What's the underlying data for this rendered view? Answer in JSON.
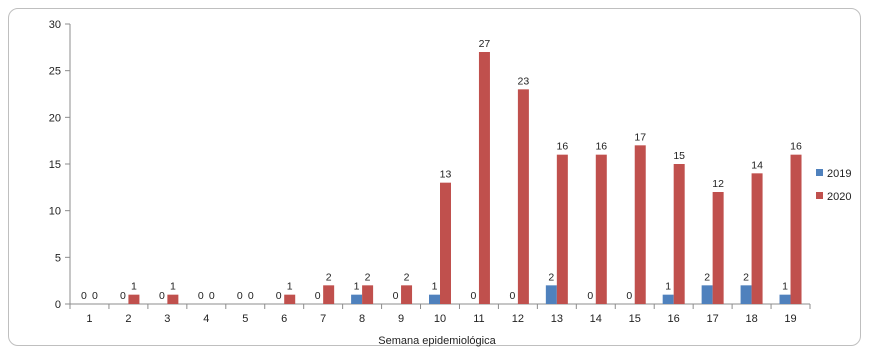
{
  "chart_data": {
    "type": "bar",
    "title": "",
    "xlabel": "Semana epidemiológica",
    "ylabel": "",
    "ylim": [
      0,
      30
    ],
    "yticks": [
      0,
      5,
      10,
      15,
      20,
      25,
      30
    ],
    "grid": false,
    "legend": "right",
    "categories": [
      "1",
      "2",
      "3",
      "4",
      "5",
      "6",
      "7",
      "8",
      "9",
      "10",
      "11",
      "12",
      "13",
      "14",
      "15",
      "16",
      "17",
      "18",
      "19"
    ],
    "series": [
      {
        "name": "2019",
        "color": "#4f81bd",
        "values": [
          0,
          0,
          0,
          0,
          0,
          0,
          0,
          1,
          0,
          1,
          0,
          0,
          2,
          0,
          0,
          1,
          2,
          2,
          1
        ]
      },
      {
        "name": "2020",
        "color": "#c0504d",
        "values": [
          0,
          1,
          1,
          0,
          0,
          1,
          2,
          2,
          2,
          13,
          27,
          23,
          16,
          16,
          17,
          15,
          12,
          14,
          16
        ]
      }
    ]
  }
}
